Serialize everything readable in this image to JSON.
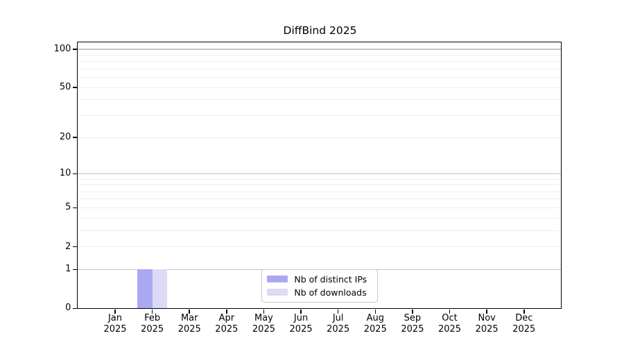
{
  "figure": {
    "background": "#ffffff"
  },
  "chart_data": {
    "type": "bar",
    "title": "DiffBind 2025",
    "categories": [
      {
        "month": "Jan",
        "year": "2025"
      },
      {
        "month": "Feb",
        "year": "2025"
      },
      {
        "month": "Mar",
        "year": "2025"
      },
      {
        "month": "Apr",
        "year": "2025"
      },
      {
        "month": "May",
        "year": "2025"
      },
      {
        "month": "Jun",
        "year": "2025"
      },
      {
        "month": "Jul",
        "year": "2025"
      },
      {
        "month": "Aug",
        "year": "2025"
      },
      {
        "month": "Sep",
        "year": "2025"
      },
      {
        "month": "Oct",
        "year": "2025"
      },
      {
        "month": "Nov",
        "year": "2025"
      },
      {
        "month": "Dec",
        "year": "2025"
      }
    ],
    "series": [
      {
        "name": "Nb of distinct IPs",
        "color": "#a9a9f2",
        "values": [
          0,
          1,
          0,
          0,
          0,
          0,
          0,
          0,
          0,
          0,
          0,
          0
        ]
      },
      {
        "name": "Nb of downloads",
        "color": "#dbdbf6",
        "values": [
          0,
          1,
          0,
          0,
          0,
          0,
          0,
          0,
          0,
          0,
          0,
          0
        ]
      }
    ],
    "yscale": "log1p",
    "ylim": [
      0,
      112.7
    ],
    "xlabel": "",
    "ylabel": "",
    "y_ticks": [
      {
        "value": 0,
        "label": "0"
      },
      {
        "value": 1,
        "label": "1"
      },
      {
        "value": 2,
        "label": "2"
      },
      {
        "value": 5,
        "label": "5"
      },
      {
        "value": 10,
        "label": "10"
      },
      {
        "value": 20,
        "label": "20"
      },
      {
        "value": 50,
        "label": "50"
      },
      {
        "value": 100,
        "label": "100"
      }
    ],
    "grid": {
      "on": true,
      "decade_lines": [
        1,
        10,
        100
      ],
      "minor_lines": [
        2,
        3,
        4,
        5,
        6,
        7,
        8,
        9,
        20,
        30,
        40,
        50,
        60,
        70,
        80,
        90
      ],
      "decade_color": "#c5c5c5",
      "minor_color": "#ededed"
    },
    "legend": {
      "position": "bottom-center-inside"
    },
    "axis_color": "#000000"
  }
}
